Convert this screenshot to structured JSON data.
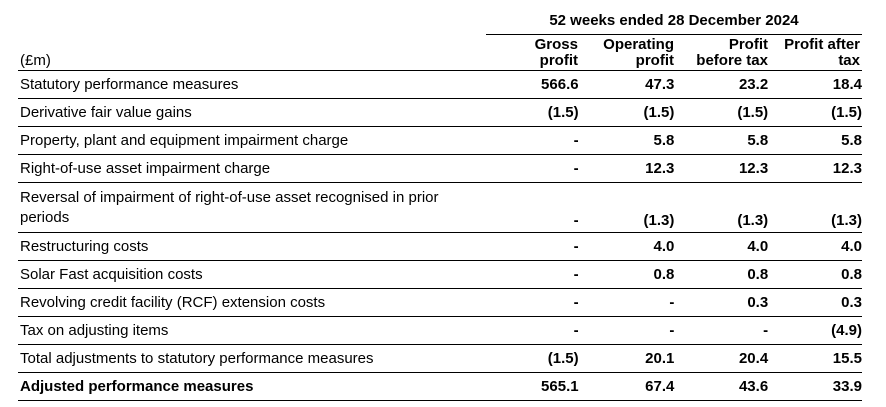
{
  "period_heading": "52 weeks ended 28 December 2024",
  "unit_label": "(£m)",
  "columns": [
    {
      "line1": "Gross",
      "line2": "profit"
    },
    {
      "line1": "Operating",
      "line2": "profit"
    },
    {
      "line1": "Profit",
      "line2": "before tax"
    },
    {
      "line1": "Profit after",
      "line2": "tax"
    }
  ],
  "rows": [
    {
      "label": "Statutory performance measures",
      "values": [
        "566.6",
        "47.3",
        "23.2",
        "18.4"
      ]
    },
    {
      "label": "Derivative fair value gains",
      "values": [
        "(1.5)",
        "(1.5)",
        "(1.5)",
        "(1.5)"
      ]
    },
    {
      "label": "Property, plant and equipment impairment charge",
      "values": [
        "-",
        "5.8",
        "5.8",
        "5.8"
      ]
    },
    {
      "label": "Right-of-use asset impairment charge",
      "values": [
        "-",
        "12.3",
        "12.3",
        "12.3"
      ]
    },
    {
      "label": "Reversal of impairment of right-of-use asset recognised in prior periods",
      "values": [
        "-",
        "(1.3)",
        "(1.3)",
        "(1.3)"
      ]
    },
    {
      "label": "Restructuring costs",
      "values": [
        "-",
        "4.0",
        "4.0",
        "4.0"
      ]
    },
    {
      "label": "Solar Fast acquisition costs",
      "values": [
        "-",
        "0.8",
        "0.8",
        "0.8"
      ]
    },
    {
      "label": "Revolving credit facility (RCF) extension costs",
      "values": [
        "-",
        "-",
        "0.3",
        "0.3"
      ]
    },
    {
      "label": "Tax on adjusting items",
      "values": [
        "-",
        "-",
        "-",
        "(4.9)"
      ]
    },
    {
      "label": "Total adjustments to statutory performance measures",
      "values": [
        "(1.5)",
        "20.1",
        "20.4",
        "15.5"
      ]
    },
    {
      "label": "Adjusted performance measures",
      "values": [
        "565.1",
        "67.4",
        "43.6",
        "33.9"
      ]
    }
  ]
}
